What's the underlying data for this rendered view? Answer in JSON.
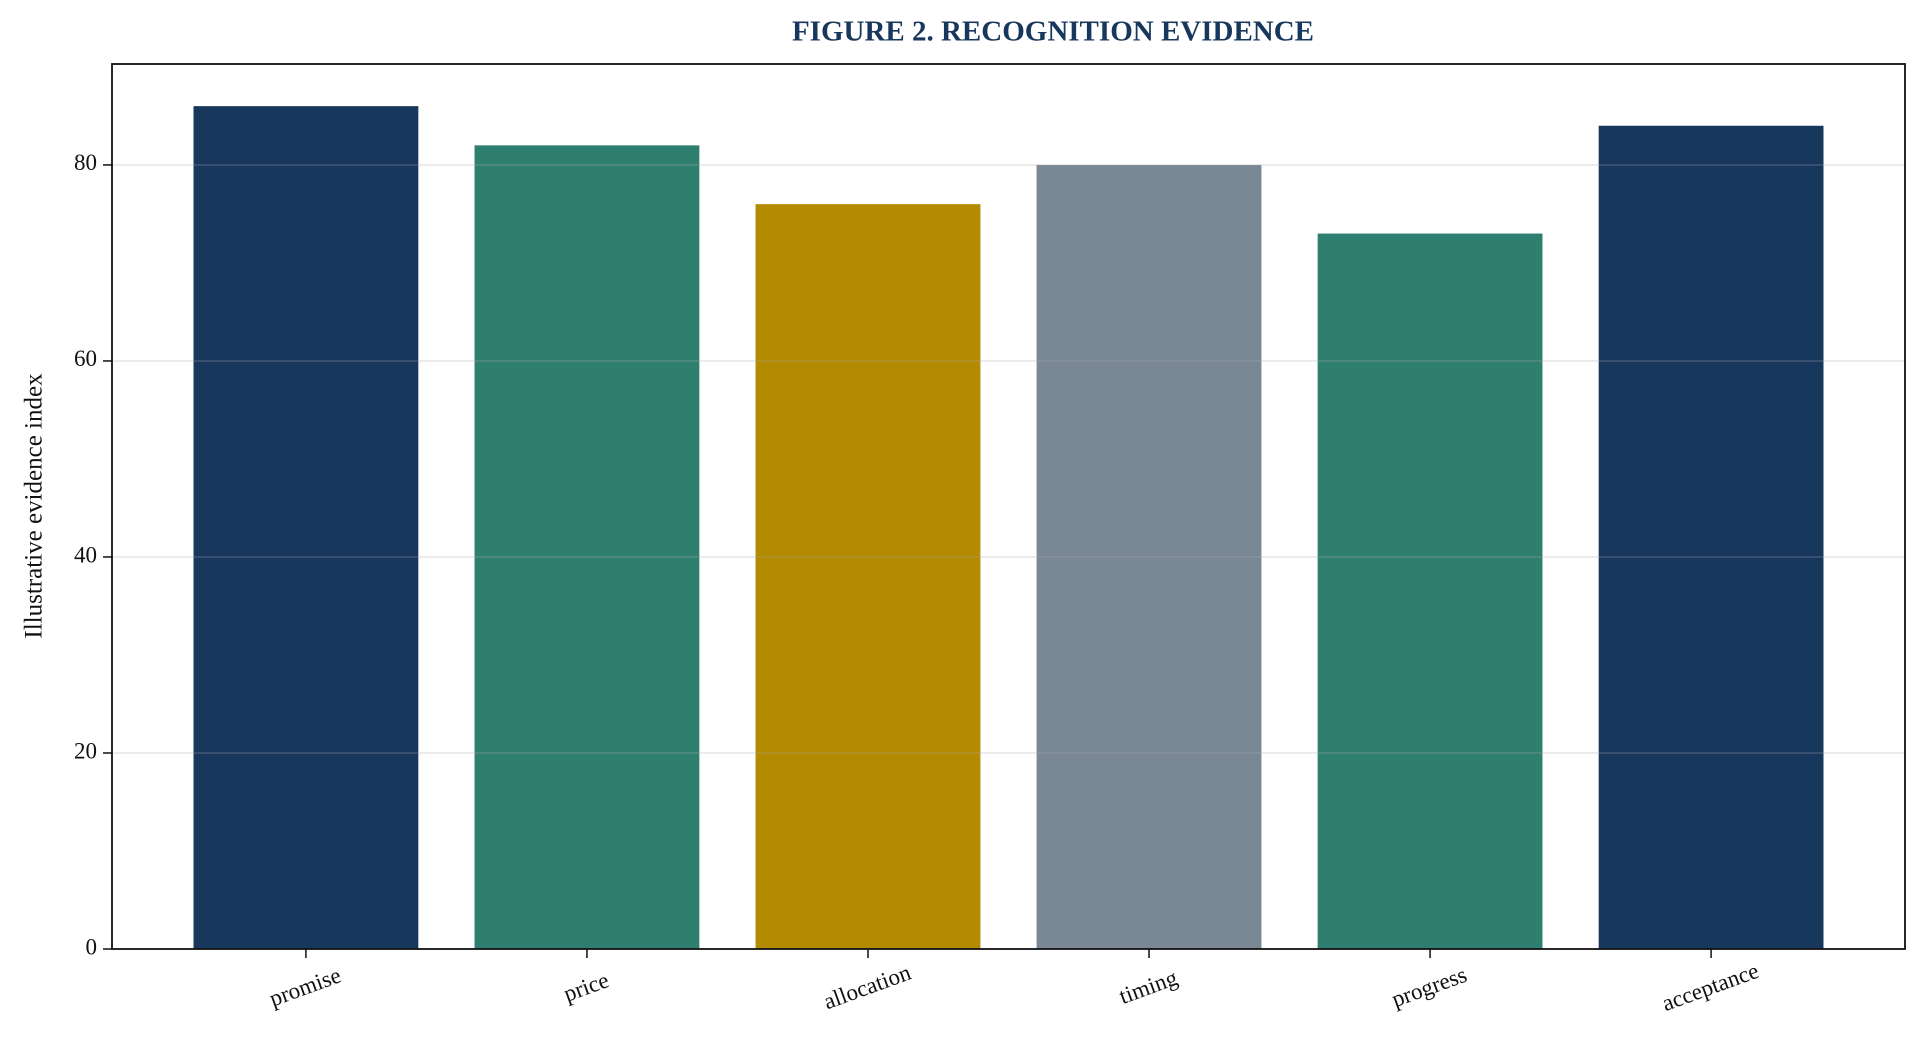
{
  "chart_data": {
    "type": "bar",
    "title": "FIGURE 2. RECOGNITION EVIDENCE",
    "y_label": "Illustrative evidence index",
    "categories": [
      "promise",
      "price",
      "allocation",
      "timing",
      "progress",
      "acceptance"
    ],
    "values": [
      86,
      82,
      76,
      80,
      73,
      84
    ],
    "colors": [
      "#18375c",
      "#2e7f6f",
      "#b38a00",
      "#7a8795",
      "#2e7f6f",
      "#18375c"
    ],
    "ylim": [
      0,
      90.3
    ],
    "yticks": [
      0,
      20,
      40,
      60,
      80
    ],
    "grid": true
  }
}
